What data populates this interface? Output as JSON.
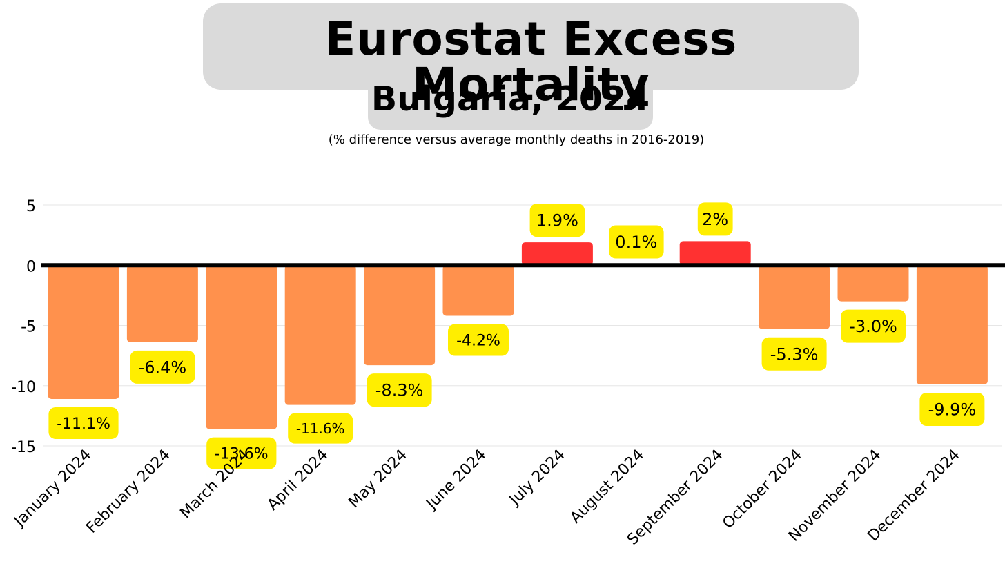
{
  "title": "Eurostat Excess Mortality",
  "subtitle": "Bulgaria, 2024",
  "note": "(% difference versus average monthly deaths in 2016-2019)",
  "colors": {
    "negative_bar": "#ff914d",
    "positive_bar": "#ff3131",
    "label_bg": "#ffee00",
    "title_bg": "#dadada",
    "zero_line": "#000000",
    "grid": "#e6e6e6"
  },
  "chart_data": {
    "type": "bar",
    "title": "Eurostat Excess Mortality",
    "subtitle": "Bulgaria, 2024",
    "ylabel": "% difference versus average monthly deaths in 2016-2019",
    "xlabel": "",
    "ylim": [
      -15,
      5
    ],
    "yticks": [
      5,
      0,
      -5,
      -10,
      -15
    ],
    "grid": true,
    "categories": [
      "January 2024",
      "February 2024",
      "March 2024",
      "April 2024",
      "May 2024",
      "June 2024",
      "July 2024",
      "August 2024",
      "September 2024",
      "October 2024",
      "November 2024",
      "December 2024"
    ],
    "values": [
      -11.1,
      -6.4,
      -13.6,
      -11.6,
      -8.3,
      -4.2,
      1.9,
      0.1,
      2.0,
      -5.3,
      -3.0,
      -9.9
    ],
    "labels": [
      "-11.1%",
      "-6.4%",
      "-13.6%",
      "-11.6%",
      "-8.3%",
      "-4.2%",
      "1.9%",
      "0.1%",
      "2%",
      "-5.3%",
      "-3.0%",
      "-9.9%"
    ]
  }
}
